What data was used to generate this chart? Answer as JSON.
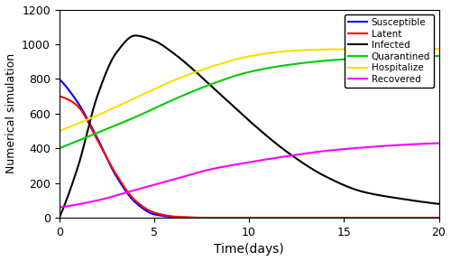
{
  "title": "",
  "xlabel": "Time(days)",
  "ylabel": "Numerical simulation",
  "xlim": [
    0,
    20
  ],
  "ylim": [
    0,
    1200
  ],
  "yticks": [
    0,
    200,
    400,
    600,
    800,
    1000,
    1200
  ],
  "xticks": [
    0,
    5,
    10,
    15,
    20
  ],
  "colors": {
    "Susceptible": "#0000ff",
    "Latent": "#ff0000",
    "Infected": "#000000",
    "Quarantined": "#00cc00",
    "Hospitalize": "#ffdd00",
    "Recovered": "#ff00ff"
  },
  "legend_labels": [
    "Susceptible",
    "Latent",
    "Infected",
    "Quarantined",
    "Hospitalize",
    "Recovered"
  ],
  "figsize": [
    5.0,
    2.89
  ],
  "dpi": 100,
  "linewidth": 1.5,
  "S_points_x": [
    0,
    1,
    2,
    3,
    4,
    5,
    6,
    7,
    8,
    10,
    15,
    20
  ],
  "S_points_y": [
    800,
    660,
    460,
    240,
    90,
    20,
    5,
    1,
    0,
    0,
    0,
    0
  ],
  "L_points_x": [
    0,
    0.5,
    1,
    2,
    3,
    4,
    5,
    6,
    7,
    8,
    10,
    15,
    20
  ],
  "L_points_y": [
    700,
    680,
    640,
    450,
    250,
    100,
    30,
    8,
    2,
    0,
    0,
    0,
    0
  ],
  "I_points_x": [
    0,
    1,
    2,
    3,
    4,
    5,
    6,
    7,
    8,
    9,
    10,
    12,
    14,
    16,
    18,
    20
  ],
  "I_points_y": [
    0,
    300,
    700,
    950,
    1050,
    1020,
    950,
    860,
    760,
    660,
    560,
    380,
    240,
    150,
    110,
    80
  ],
  "Iq_points_x": [
    0,
    2,
    4,
    6,
    8,
    10,
    12,
    14,
    16,
    18,
    20
  ],
  "Iq_points_y": [
    400,
    490,
    580,
    680,
    770,
    840,
    880,
    905,
    920,
    928,
    932
  ],
  "Ih_points_x": [
    0,
    2,
    4,
    6,
    8,
    10,
    12,
    14,
    16,
    18,
    20
  ],
  "Ih_points_y": [
    500,
    590,
    690,
    790,
    870,
    930,
    960,
    970,
    972,
    973,
    974
  ],
  "R_points_x": [
    0,
    2,
    4,
    6,
    8,
    10,
    12,
    14,
    16,
    18,
    20
  ],
  "R_points_y": [
    60,
    100,
    160,
    220,
    280,
    320,
    355,
    385,
    405,
    420,
    430
  ]
}
